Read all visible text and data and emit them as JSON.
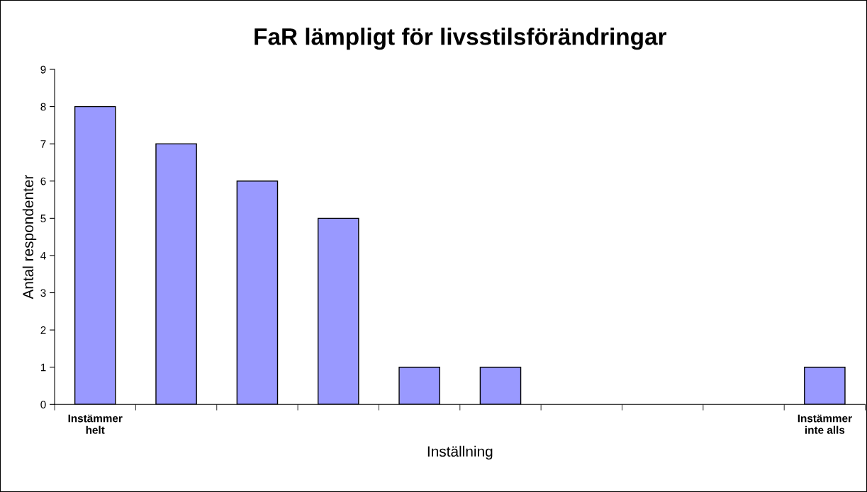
{
  "chart_data": {
    "type": "bar",
    "title": "FaR lämpligt för livsstilsförändringar",
    "xlabel": "Inställning",
    "ylabel": "Antal respondenter",
    "categories": [
      "Instämmer\nhelt",
      null,
      null,
      null,
      null,
      null,
      null,
      null,
      null,
      "Instämmer\ninte alls"
    ],
    "values": [
      8,
      7,
      6,
      5,
      1,
      1,
      0,
      0,
      0,
      1
    ],
    "color": "#9999ff",
    "ylim": [
      0,
      9
    ],
    "yticks": [
      0,
      1,
      2,
      3,
      4,
      5,
      6,
      7,
      8,
      9
    ],
    "grid": false
  }
}
